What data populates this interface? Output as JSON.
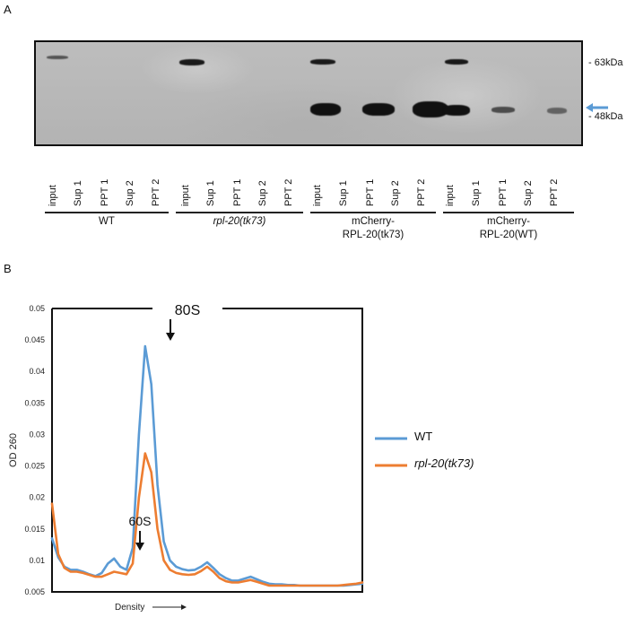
{
  "panel_a": {
    "letter": "A",
    "markers": [
      "- 63kDa",
      "- 48kDa"
    ],
    "lanes": [
      "input",
      "Sup 1",
      "PPT 1",
      "Sup 2",
      "PPT 2"
    ],
    "groups": [
      {
        "line1": "WT",
        "line2": ""
      },
      {
        "line1": "rpl-20(tk73)",
        "line2": ""
      },
      {
        "line1": "mCherry-",
        "line2": "RPL-20(tk73)"
      },
      {
        "line1": "mCherry-",
        "line2": "RPL-20(WT)"
      }
    ],
    "arrow_color": "#5b9bd5"
  },
  "panel_b": {
    "letter": "B",
    "annotations": {
      "peak_80s": "80S",
      "peak_60s": "60S"
    },
    "chart_data": {
      "type": "line",
      "xlabel": "Density",
      "ylabel": "OD 260",
      "ylim": [
        0.005,
        0.05
      ],
      "yticks": [
        "0.05",
        "0.045",
        "0.04",
        "0.035",
        "0.03",
        "0.025",
        "0.02",
        "0.015",
        "0.01",
        "0.005"
      ],
      "x": [
        0,
        2,
        4,
        6,
        8,
        10,
        12,
        14,
        16,
        18,
        20,
        22,
        24,
        26,
        28,
        30,
        32,
        34,
        36,
        38,
        40,
        42,
        44,
        46,
        48,
        50,
        52,
        54,
        56,
        58,
        60,
        62,
        64,
        66,
        68,
        70,
        72,
        74,
        76,
        78,
        80,
        82,
        84,
        86,
        88,
        90,
        92,
        94,
        96,
        98,
        100
      ],
      "series": [
        {
          "name": "WT",
          "color": "#5b9bd5",
          "values": [
            0.0135,
            0.0105,
            0.009,
            0.0085,
            0.0085,
            0.0082,
            0.0078,
            0.0075,
            0.008,
            0.0095,
            0.0103,
            0.009,
            0.0085,
            0.012,
            0.03,
            0.044,
            0.038,
            0.022,
            0.013,
            0.01,
            0.009,
            0.0086,
            0.0084,
            0.0085,
            0.009,
            0.0097,
            0.0088,
            0.0078,
            0.0072,
            0.0068,
            0.0068,
            0.0071,
            0.0074,
            0.007,
            0.0066,
            0.0063,
            0.0062,
            0.0062,
            0.0061,
            0.0061,
            0.006,
            0.006,
            0.006,
            0.006,
            0.006,
            0.006,
            0.006,
            0.006,
            0.0061,
            0.0062,
            0.0063
          ]
        },
        {
          "name": "rpl-20(tk73)",
          "color": "#ed7d31",
          "values": [
            0.019,
            0.011,
            0.0088,
            0.0082,
            0.0082,
            0.008,
            0.0077,
            0.0074,
            0.0074,
            0.0078,
            0.0082,
            0.008,
            0.0078,
            0.0095,
            0.02,
            0.027,
            0.024,
            0.015,
            0.01,
            0.0085,
            0.008,
            0.0078,
            0.0077,
            0.0078,
            0.0083,
            0.009,
            0.0082,
            0.0072,
            0.0067,
            0.0065,
            0.0065,
            0.0067,
            0.0069,
            0.0066,
            0.0063,
            0.006,
            0.006,
            0.006,
            0.006,
            0.006,
            0.006,
            0.006,
            0.006,
            0.006,
            0.006,
            0.006,
            0.006,
            0.0061,
            0.0062,
            0.0063,
            0.0065
          ]
        }
      ]
    }
  }
}
